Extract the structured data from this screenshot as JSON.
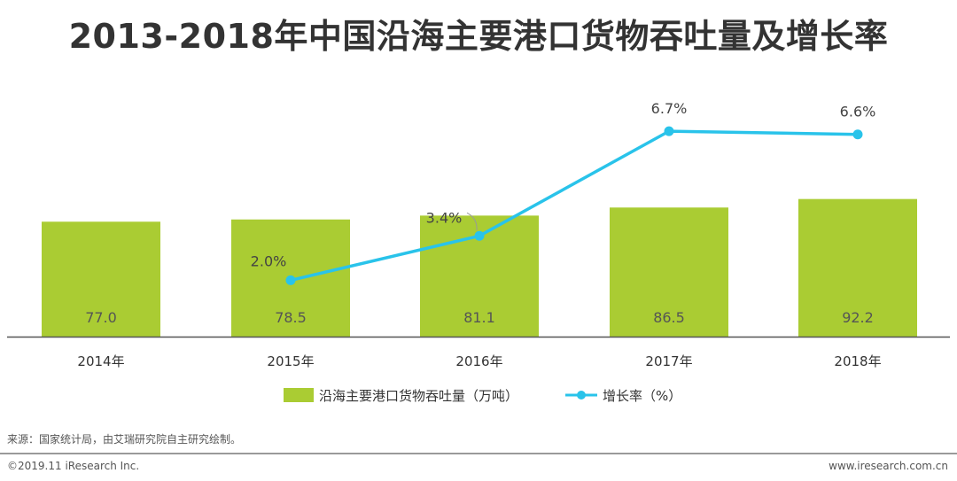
{
  "title": "2013-2018年中国沿海主要港口货物吞吐量及增长率",
  "source_text": "来源：国家统计局，由艾瑞研究院自主研究绘制。",
  "copyright": "©2019.11 iResearch Inc.",
  "website": "www.iresearch.com.cn",
  "colors": {
    "bar": "#aacc33",
    "line": "#29c3ea",
    "axis": "#555555",
    "text": "#333333"
  },
  "chart_data": {
    "type": "bar",
    "categories": [
      "2014年",
      "2015年",
      "2016年",
      "2017年",
      "2018年"
    ],
    "series": [
      {
        "name": "沿海主要港口货物吞吐量（万吨）",
        "type": "bar",
        "values": [
          77.0,
          78.5,
          81.1,
          86.5,
          92.2
        ],
        "labels": [
          "77.0",
          "78.5",
          "81.1",
          "86.5",
          "92.2"
        ]
      },
      {
        "name": "增长率（%）",
        "type": "line",
        "values": [
          null,
          2.0,
          3.4,
          6.7,
          6.6
        ],
        "labels": [
          "",
          "2.0%",
          "3.4%",
          "6.7%",
          "6.6%"
        ]
      }
    ],
    "title": "2013-2018年中国沿海主要港口货物吞吐量及增长率",
    "xlabel": "",
    "ylabel": "",
    "legend_position": "bottom"
  }
}
